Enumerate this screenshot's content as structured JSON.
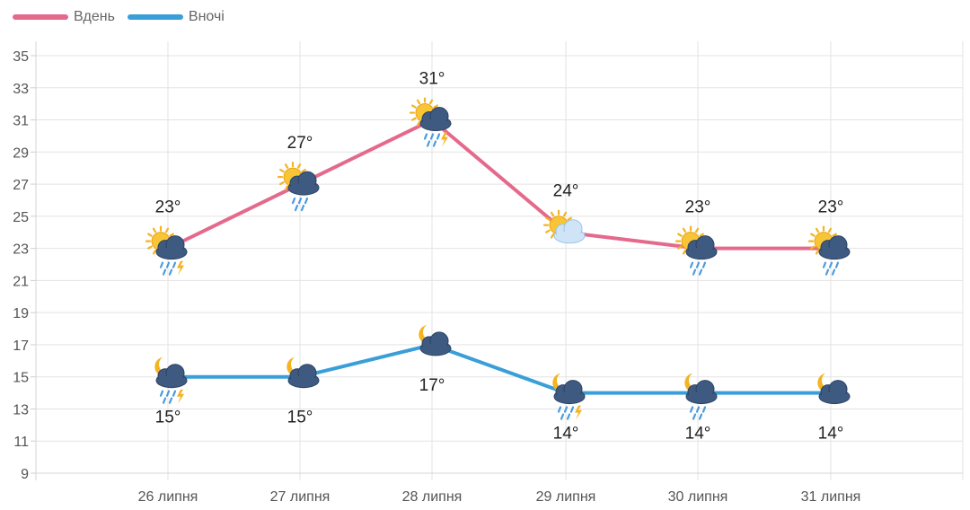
{
  "chart_data": {
    "type": "line",
    "categories": [
      "26 липня",
      "27 липня",
      "28 липня",
      "29 липня",
      "30 липня",
      "31 липня"
    ],
    "series": [
      {
        "name": "Вдень",
        "color": "#e46a8c",
        "values": [
          23,
          27,
          31,
          24,
          23,
          23
        ],
        "labels": [
          "23°",
          "27°",
          "31°",
          "24°",
          "23°",
          "23°"
        ],
        "label_position": "above",
        "icons": [
          "sun-cloud-rain-thunder-icon",
          "sun-cloud-rain-icon",
          "sun-cloud-rain-thunder-icon",
          "sun-cloud-icon",
          "sun-cloud-rain-icon",
          "sun-cloud-rain-icon"
        ]
      },
      {
        "name": "Вночі",
        "color": "#3a9fd8",
        "values": [
          15,
          15,
          17,
          14,
          14,
          14
        ],
        "labels": [
          "15°",
          "15°",
          "17°",
          "14°",
          "14°",
          "14°"
        ],
        "label_position": "below",
        "icons": [
          "moon-cloud-rain-thunder-icon",
          "moon-cloud-icon",
          "moon-cloud-icon",
          "moon-cloud-rain-thunder-icon",
          "moon-cloud-rain-icon",
          "moon-cloud-icon"
        ]
      }
    ],
    "ylim": [
      9,
      35
    ],
    "yticks": [
      "9",
      "11",
      "13",
      "15",
      "17",
      "19",
      "21",
      "23",
      "25",
      "27",
      "29",
      "31",
      "33",
      "35"
    ],
    "grid": true,
    "legend": "top-left"
  }
}
